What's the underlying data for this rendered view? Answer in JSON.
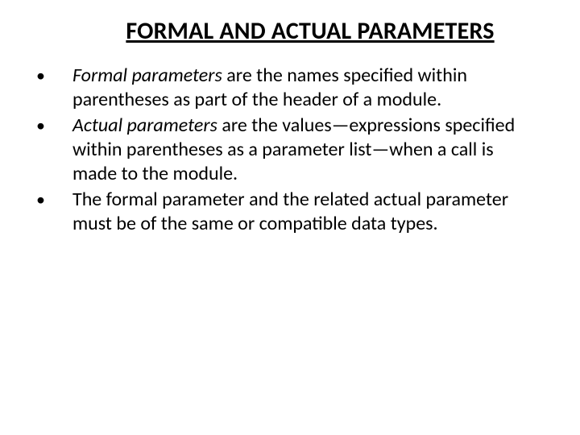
{
  "slide": {
    "title": "FORMAL AND ACTUAL PARAMETERS",
    "title_fontsize": 30,
    "title_weight": 700,
    "title_underline": true,
    "body_fontsize": 24,
    "line_height": 30,
    "text_color": "#000000",
    "background_color": "#ffffff",
    "bullet_glyph": "•",
    "bullets": [
      {
        "emphasis": "Formal parameters",
        "rest": " are the names specified within parentheses as part of the header of a module."
      },
      {
        "emphasis": "Actual parameters",
        "rest": " are the values—expressions specified within parentheses as a parameter list—when a call is made to the module."
      },
      {
        "emphasis": "",
        "rest": "The formal parameter and the related actual parameter must be of the same or compatible data types."
      }
    ]
  }
}
